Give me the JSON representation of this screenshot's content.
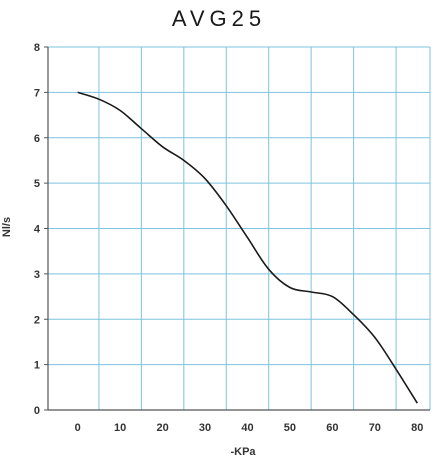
{
  "chart_data": {
    "type": "line",
    "title": "AVG25",
    "xlabel": "-KPa",
    "ylabel": "Nl/s",
    "xlim": [
      -7,
      83
    ],
    "ylim": [
      0,
      8
    ],
    "x_ticks": [
      0,
      10,
      20,
      30,
      40,
      50,
      60,
      70,
      80
    ],
    "y_ticks": [
      0,
      1,
      2,
      3,
      4,
      5,
      6,
      7,
      8
    ],
    "grid": true,
    "grid_color": "#7ec3df",
    "line_color": "#1a1a1a",
    "series": [
      {
        "x": [
          0,
          5,
          10,
          15,
          20,
          25,
          30,
          35,
          40,
          45,
          50,
          55,
          60,
          65,
          70,
          75,
          80
        ],
        "y": [
          7.0,
          6.85,
          6.6,
          6.2,
          5.8,
          5.5,
          5.1,
          4.5,
          3.8,
          3.1,
          2.7,
          2.6,
          2.5,
          2.1,
          1.6,
          0.9,
          0.15
        ]
      }
    ]
  }
}
